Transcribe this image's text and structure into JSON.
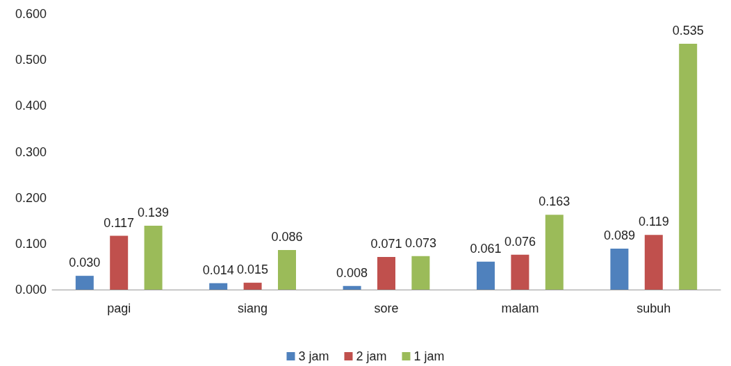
{
  "chart_data": {
    "type": "bar",
    "categories": [
      "pagi",
      "siang",
      "sore",
      "malam",
      "subuh"
    ],
    "series": [
      {
        "name": "3 jam",
        "color": "#4f81bd",
        "values": [
          0.03,
          0.014,
          0.008,
          0.061,
          0.089
        ]
      },
      {
        "name": "2 jam",
        "color": "#c0504d",
        "values": [
          0.117,
          0.015,
          0.071,
          0.076,
          0.119
        ]
      },
      {
        "name": "1 jam",
        "color": "#9bbb59",
        "values": [
          0.139,
          0.086,
          0.073,
          0.163,
          0.535
        ]
      }
    ],
    "ylim": [
      0,
      0.6
    ],
    "yticks": [
      {
        "value": 0,
        "label": "0.000"
      },
      {
        "value": 0.1,
        "label": "0.100"
      },
      {
        "value": 0.2,
        "label": "0.200"
      },
      {
        "value": 0.3,
        "label": "0.300"
      },
      {
        "value": 0.4,
        "label": "0.400"
      },
      {
        "value": 0.5,
        "label": "0.500"
      },
      {
        "value": 0.6,
        "label": "0.600"
      }
    ],
    "value_labels": [
      [
        "0.030",
        "0.014",
        "0.008",
        "0.061",
        "0.089"
      ],
      [
        "0.117",
        "0.015",
        "0.071",
        "0.076",
        "0.119"
      ],
      [
        "0.139",
        "0.086",
        "0.073",
        "0.163",
        "0.535"
      ]
    ],
    "grid": false,
    "legend": "bottom"
  }
}
